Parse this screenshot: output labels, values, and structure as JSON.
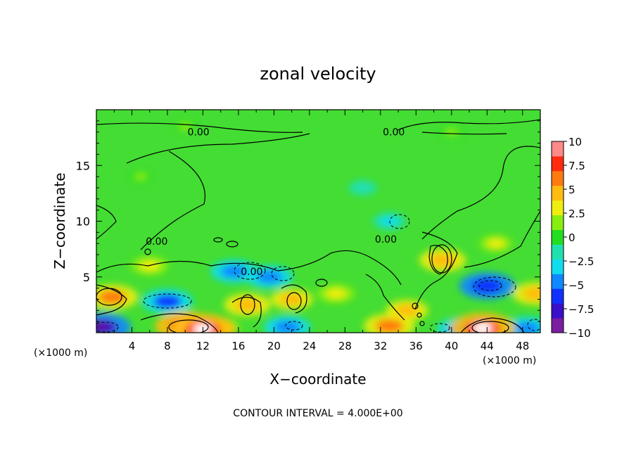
{
  "chart_data": {
    "type": "heatmap",
    "title": "zonal velocity",
    "xlabel": "X−coordinate",
    "ylabel": "Z−coordinate",
    "x_unit_left": "(×1000 m)",
    "x_unit_right": "(×1000 m)",
    "xlim": [
      0,
      50
    ],
    "ylim": [
      0,
      20
    ],
    "x_ticks": [
      4,
      8,
      12,
      16,
      20,
      24,
      28,
      32,
      36,
      40,
      44,
      48
    ],
    "y_ticks": [
      5,
      10,
      15
    ],
    "colorbar": {
      "min": -10,
      "max": 10,
      "ticks": [
        {
          "value": 10,
          "label": "10"
        },
        {
          "value": 7.5,
          "label": "7.5"
        },
        {
          "value": 5,
          "label": "5"
        },
        {
          "value": 2.5,
          "label": "2.5"
        },
        {
          "value": 0,
          "label": "0"
        },
        {
          "value": -2.5,
          "label": "−2.5"
        },
        {
          "value": -5,
          "label": "−5"
        },
        {
          "value": -7.5,
          "label": "−7.5"
        },
        {
          "value": -10,
          "label": "−10"
        }
      ],
      "colors": [
        "#7a1fa0",
        "#3a10c8",
        "#1030ff",
        "#1088ff",
        "#10ddee",
        "#20e0b0",
        "#22dd22",
        "#88ee10",
        "#eeee10",
        "#ffbb10",
        "#ff7a10",
        "#ff2a10",
        "#ff8888"
      ]
    },
    "contour_labels": [
      {
        "text": "0.00",
        "x": 11.5,
        "z": 18.0
      },
      {
        "text": "0.00",
        "x": 33.5,
        "z": 18.0
      },
      {
        "text": "0.00",
        "x": 6.8,
        "z": 8.2
      },
      {
        "text": "0.00",
        "x": 17.5,
        "z": 5.5
      },
      {
        "text": "0.00",
        "x": 32.6,
        "z": 8.4
      }
    ],
    "features": [
      {
        "x": 0.5,
        "z": 0.5,
        "value": -9
      },
      {
        "x": 1.8,
        "z": 3.2,
        "value": 7
      },
      {
        "x": 8.0,
        "z": 2.8,
        "value": -7
      },
      {
        "x": 10.0,
        "z": 0.6,
        "value": 9
      },
      {
        "x": 12.0,
        "z": 0.3,
        "value": 10
      },
      {
        "x": 17.0,
        "z": 2.5,
        "value": 6
      },
      {
        "x": 15.5,
        "z": 5.5,
        "value": -6
      },
      {
        "x": 19.5,
        "z": 5.0,
        "value": -6
      },
      {
        "x": 22.0,
        "z": 3.0,
        "value": 5
      },
      {
        "x": 21.5,
        "z": 0.5,
        "value": -6
      },
      {
        "x": 33.0,
        "z": 0.6,
        "value": 7
      },
      {
        "x": 35.0,
        "z": 2.0,
        "value": 5
      },
      {
        "x": 39.0,
        "z": 6.5,
        "value": 6
      },
      {
        "x": 41.0,
        "z": 0.3,
        "value": -6
      },
      {
        "x": 44.0,
        "z": 4.2,
        "value": -8
      },
      {
        "x": 43.5,
        "z": 0.4,
        "value": 10
      },
      {
        "x": 49.5,
        "z": 3.5,
        "value": 6
      },
      {
        "x": 48.5,
        "z": 0.4,
        "value": -6
      },
      {
        "x": 33.0,
        "z": 10.0,
        "value": -3
      },
      {
        "x": 30.0,
        "z": 13.0,
        "value": -2
      },
      {
        "x": 5.0,
        "z": 14.0,
        "value": 1
      },
      {
        "x": 45.0,
        "z": 8.0,
        "value": 3
      },
      {
        "x": 6.0,
        "z": 6.0,
        "value": 4
      },
      {
        "x": 27.0,
        "z": 3.5,
        "value": 4
      },
      {
        "x": 14.0,
        "z": 0.5,
        "value": 4
      },
      {
        "x": 10.0,
        "z": 18.5,
        "value": 1
      },
      {
        "x": 40.0,
        "z": 18.0,
        "value": 1
      }
    ],
    "footer": "CONTOUR INTERVAL = 4.000E+00",
    "grid": false,
    "legend": "colorbar-right"
  }
}
